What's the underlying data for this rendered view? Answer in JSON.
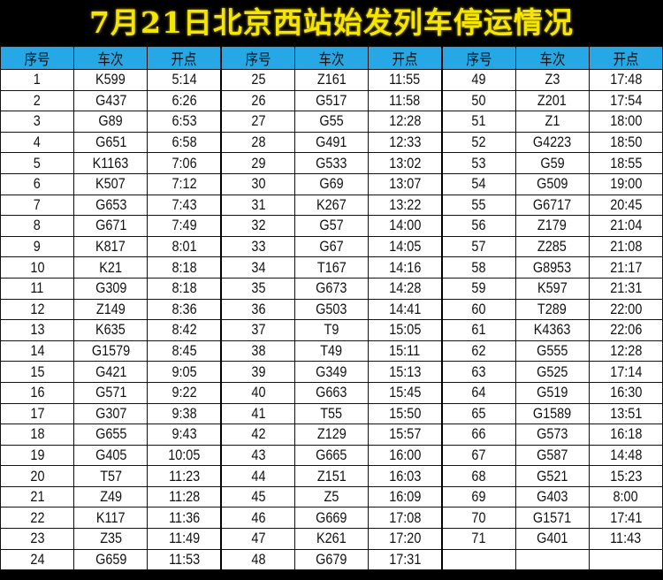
{
  "title": "7月21日北京西站始发列车停运情况",
  "headers": [
    "序号",
    "车次",
    "开点",
    "序号",
    "车次",
    "开点",
    "序号",
    "车次",
    "开点"
  ],
  "trains": [
    [
      "1",
      "K599",
      "5:14"
    ],
    [
      "2",
      "G437",
      "6:26"
    ],
    [
      "3",
      "G89",
      "6:53"
    ],
    [
      "4",
      "G651",
      "6:58"
    ],
    [
      "5",
      "K1163",
      "7:06"
    ],
    [
      "6",
      "K507",
      "7:12"
    ],
    [
      "7",
      "G653",
      "7:43"
    ],
    [
      "8",
      "G671",
      "7:49"
    ],
    [
      "9",
      "K817",
      "8:01"
    ],
    [
      "10",
      "K21",
      "8:18"
    ],
    [
      "11",
      "G309",
      "8:18"
    ],
    [
      "12",
      "Z149",
      "8:36"
    ],
    [
      "13",
      "K635",
      "8:42"
    ],
    [
      "14",
      "G1579",
      "8:45"
    ],
    [
      "15",
      "G421",
      "9:05"
    ],
    [
      "16",
      "G571",
      "9:22"
    ],
    [
      "17",
      "G307",
      "9:38"
    ],
    [
      "18",
      "G655",
      "9:43"
    ],
    [
      "19",
      "G405",
      "10:05"
    ],
    [
      "20",
      "T57",
      "11:23"
    ],
    [
      "21",
      "Z49",
      "11:28"
    ],
    [
      "22",
      "K117",
      "11:36"
    ],
    [
      "23",
      "Z35",
      "11:49"
    ],
    [
      "24",
      "G659",
      "11:53"
    ],
    [
      "25",
      "Z161",
      "11:55"
    ],
    [
      "26",
      "G517",
      "11:58"
    ],
    [
      "27",
      "G55",
      "12:28"
    ],
    [
      "28",
      "G491",
      "12:33"
    ],
    [
      "29",
      "G533",
      "13:02"
    ],
    [
      "30",
      "G69",
      "13:07"
    ],
    [
      "31",
      "K267",
      "13:22"
    ],
    [
      "32",
      "G57",
      "14:00"
    ],
    [
      "33",
      "G67",
      "14:05"
    ],
    [
      "34",
      "T167",
      "14:16"
    ],
    [
      "35",
      "G673",
      "14:28"
    ],
    [
      "36",
      "G503",
      "14:41"
    ],
    [
      "37",
      "T9",
      "15:05"
    ],
    [
      "38",
      "T49",
      "15:11"
    ],
    [
      "39",
      "G349",
      "15:13"
    ],
    [
      "40",
      "G663",
      "15:45"
    ],
    [
      "41",
      "T55",
      "15:50"
    ],
    [
      "42",
      "Z129",
      "15:57"
    ],
    [
      "43",
      "G665",
      "16:00"
    ],
    [
      "44",
      "Z151",
      "16:03"
    ],
    [
      "45",
      "Z5",
      "16:09"
    ],
    [
      "46",
      "G669",
      "17:08"
    ],
    [
      "47",
      "K261",
      "17:20"
    ],
    [
      "48",
      "G679",
      "17:31"
    ],
    [
      "49",
      "Z3",
      "17:48"
    ],
    [
      "50",
      "Z201",
      "17:54"
    ],
    [
      "51",
      "Z1",
      "18:00"
    ],
    [
      "52",
      "G4223",
      "18:50"
    ],
    [
      "53",
      "G59",
      "18:55"
    ],
    [
      "54",
      "G509",
      "19:00"
    ],
    [
      "55",
      "G6717",
      "20:45"
    ],
    [
      "56",
      "Z179",
      "21:04"
    ],
    [
      "57",
      "Z285",
      "21:08"
    ],
    [
      "58",
      "G8953",
      "21:17"
    ],
    [
      "59",
      "K597",
      "21:31"
    ],
    [
      "60",
      "T289",
      "22:00"
    ],
    [
      "61",
      "K4363",
      "22:06"
    ],
    [
      "62",
      "G555",
      "12:28"
    ],
    [
      "63",
      "G525",
      "17:14"
    ],
    [
      "64",
      "G519",
      "16:30"
    ],
    [
      "65",
      "G1589",
      "13:51"
    ],
    [
      "66",
      "G573",
      "16:18"
    ],
    [
      "67",
      "G587",
      "14:48"
    ],
    [
      "68",
      "G521",
      "15:23"
    ],
    [
      "69",
      "G403",
      "8:00"
    ],
    [
      "70",
      "G1571",
      "17:41"
    ],
    [
      "71",
      "G401",
      "11:43"
    ]
  ],
  "colors": {
    "title": "#f5e600",
    "header_bg": "#27a8e6",
    "title_bg": "#000000"
  }
}
